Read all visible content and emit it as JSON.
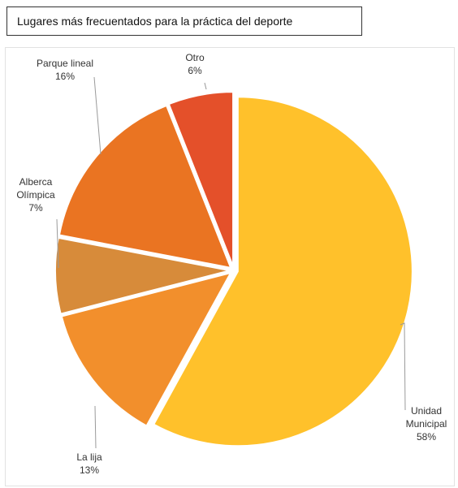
{
  "chart_data": {
    "type": "pie",
    "title": "Lugares más frecuentados para la práctica del deporte",
    "slices": [
      {
        "label": "Unidad Municipal",
        "label_lines": [
          "Unidad",
          "Municipal"
        ],
        "value": 58,
        "display": "58%",
        "color": "#FFC12B"
      },
      {
        "label": "La lija",
        "label_lines": [
          "La lija"
        ],
        "value": 13,
        "display": "13%",
        "color": "#F28F2C"
      },
      {
        "label": "Alberca Olímpica",
        "label_lines": [
          "Alberca",
          "Olímpica"
        ],
        "value": 7,
        "display": "7%",
        "color": "#D78B3A"
      },
      {
        "label": "Parque lineal",
        "label_lines": [
          "Parque lineal"
        ],
        "value": 16,
        "display": "16%",
        "color": "#EA7422"
      },
      {
        "label": "Otro",
        "label_lines": [
          "Otro"
        ],
        "value": 6,
        "display": "6%",
        "color": "#E4502A"
      }
    ],
    "start": "12 o'clock",
    "direction": "clockwise",
    "legend": "none",
    "data_labels": "outside with leader lines"
  }
}
